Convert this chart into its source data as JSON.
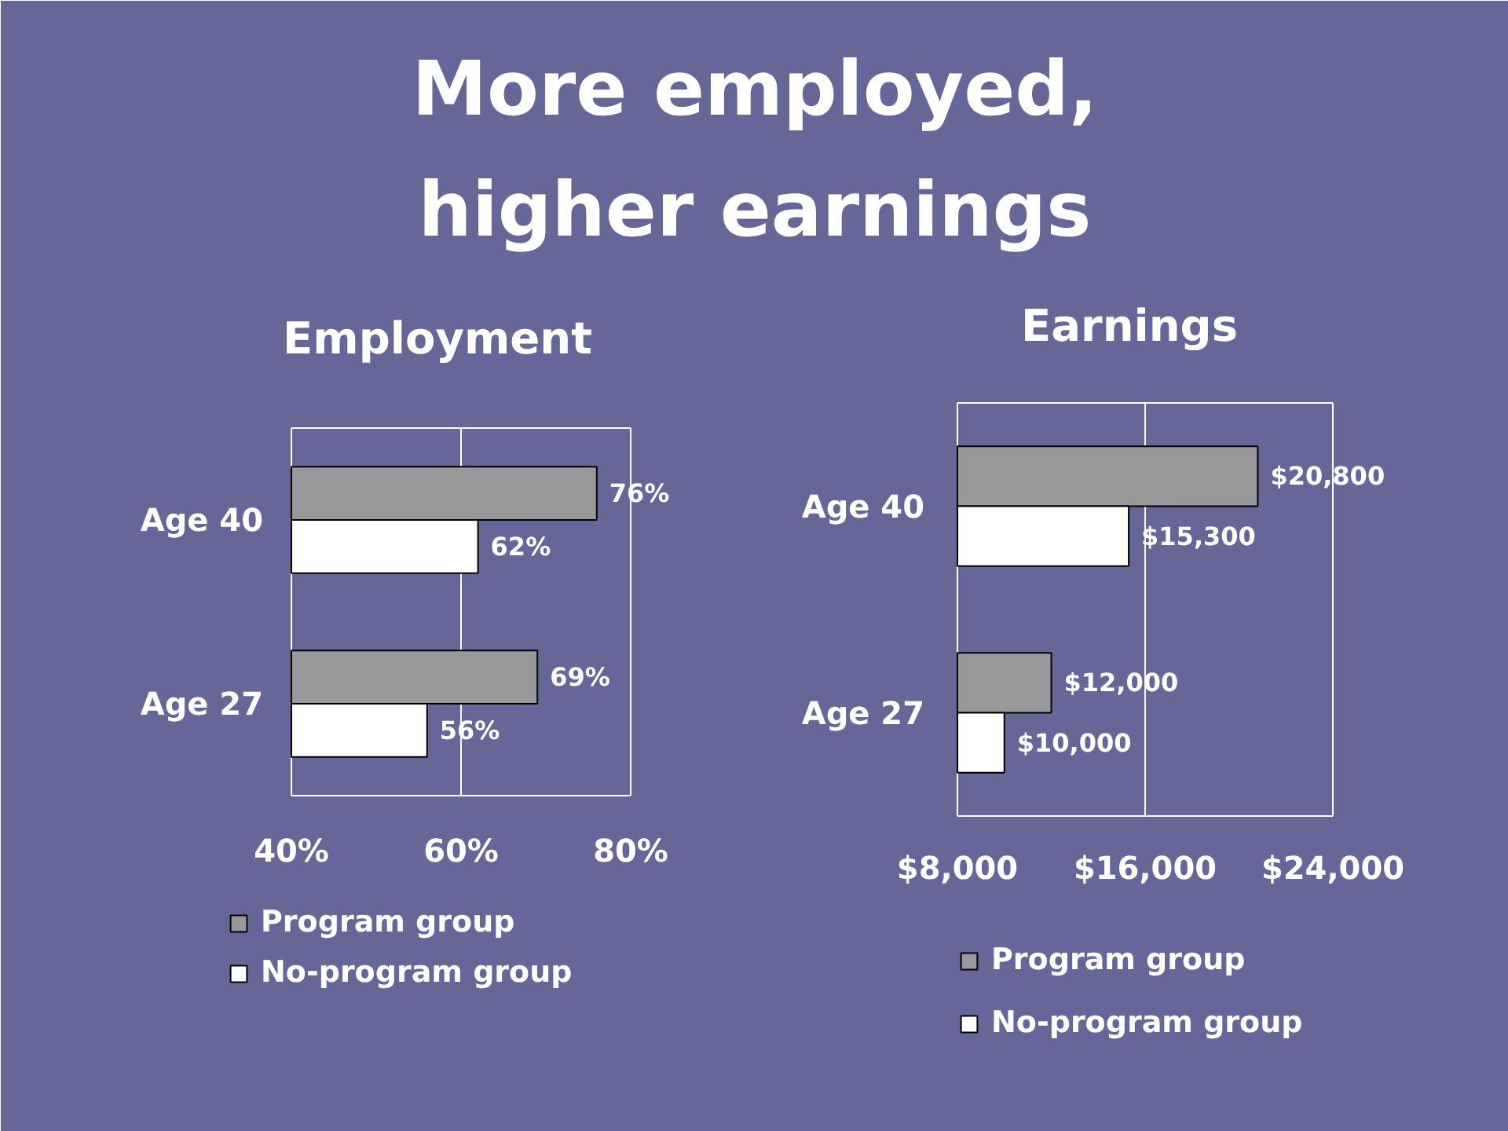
{
  "chart_data": [
    {
      "type": "other",
      "title": "More employed,\nhigher earnings"
    },
    {
      "type": "bar",
      "orientation": "horizontal",
      "title": "Employment",
      "categories": [
        "Age 40",
        "Age 27"
      ],
      "series": [
        {
          "name": "Program group",
          "color": "#999999",
          "values": [
            76,
            69
          ],
          "value_labels": [
            "76%",
            "69%"
          ]
        },
        {
          "name": "No-program group",
          "color": "#ffffff",
          "values": [
            62,
            56
          ],
          "value_labels": [
            "62%",
            "56%"
          ]
        }
      ],
      "xlim": [
        40,
        80
      ],
      "xticks": [
        {
          "value": 40,
          "label": "40%"
        },
        {
          "value": 60,
          "label": "60%"
        },
        {
          "value": 80,
          "label": "80%"
        }
      ],
      "grid": "x",
      "legend": "bottom"
    },
    {
      "type": "bar",
      "orientation": "horizontal",
      "title": "Earnings",
      "categories": [
        "Age 40",
        "Age 27"
      ],
      "series": [
        {
          "name": "Program group",
          "color": "#999999",
          "values": [
            20800,
            12000
          ],
          "value_labels": [
            "$20,800",
            "$12,000"
          ]
        },
        {
          "name": "No-program group",
          "color": "#ffffff",
          "values": [
            15300,
            10000
          ],
          "value_labels": [
            "$15,300",
            "$10,000"
          ]
        }
      ],
      "xlim": [
        8000,
        24000
      ],
      "xticks": [
        {
          "value": 8000,
          "label": "$8,000"
        },
        {
          "value": 16000,
          "label": "$16,000"
        },
        {
          "value": 24000,
          "label": "$24,000"
        }
      ],
      "grid": "x",
      "legend": "bottom"
    }
  ]
}
